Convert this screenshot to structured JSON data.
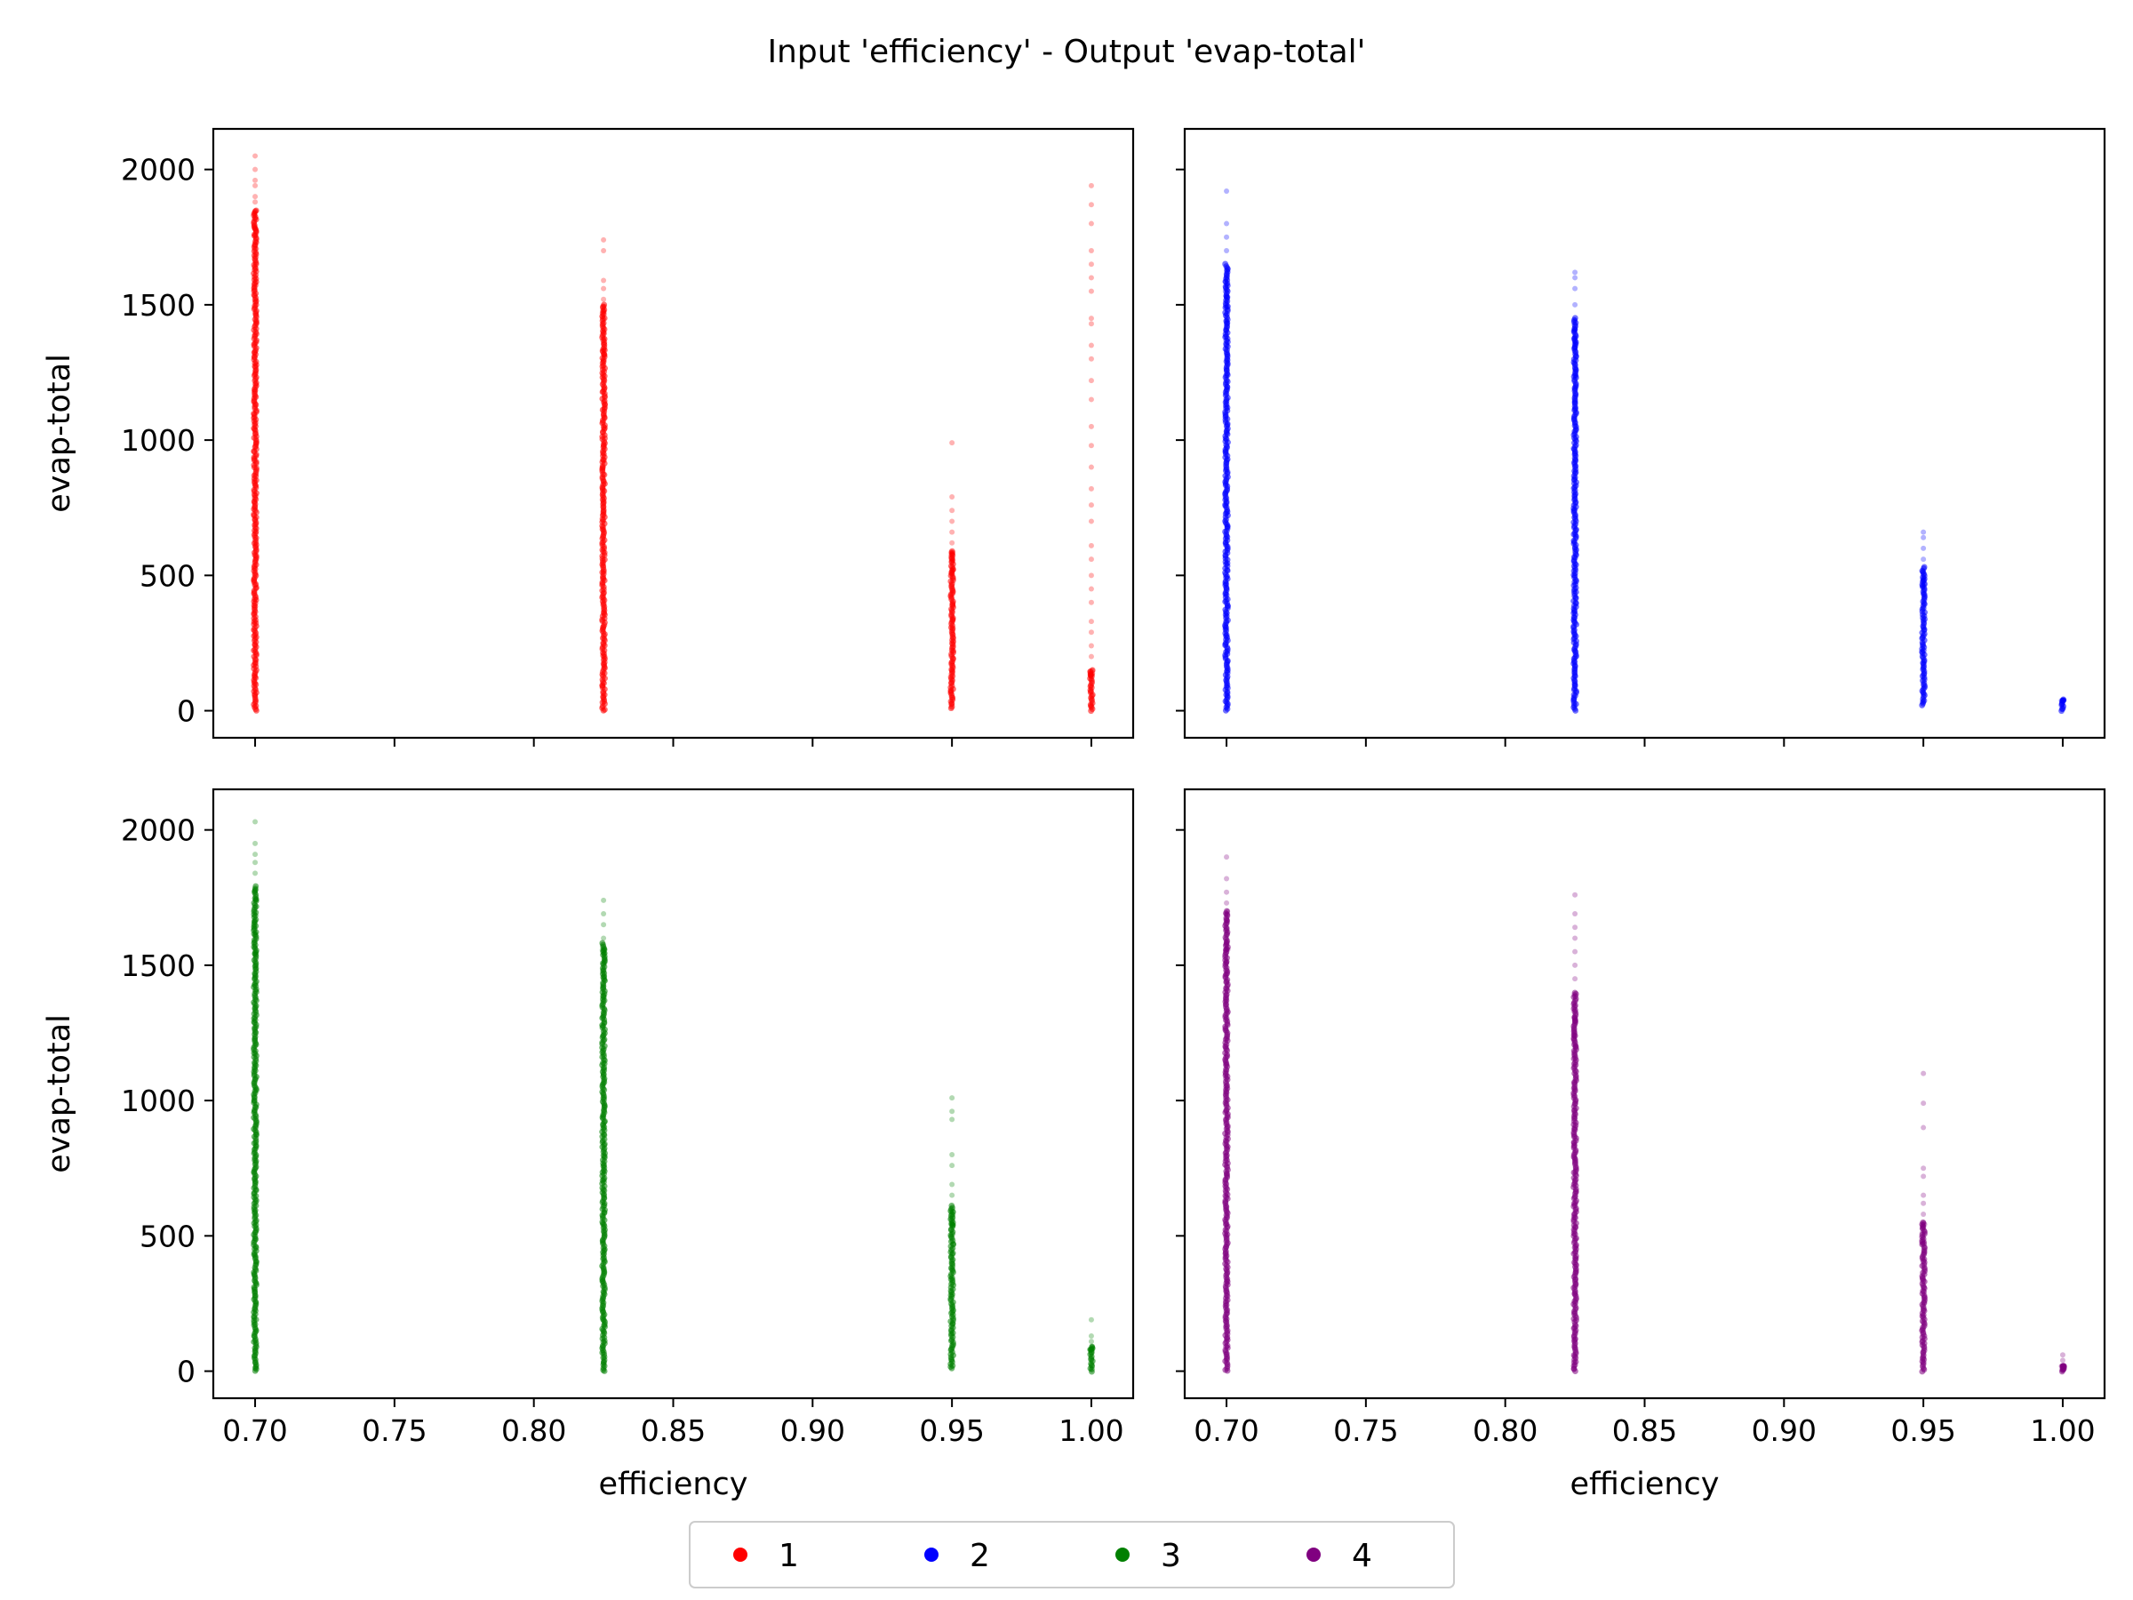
{
  "chart_data": {
    "type": "scatter",
    "title": "Input 'efficiency' - Output 'evap-total'",
    "x_label": "efficiency",
    "y_label": "evap-total",
    "xlim": [
      0.685,
      1.015
    ],
    "ylim": [
      -100,
      2150
    ],
    "x_ticks": [
      "0.70",
      "0.75",
      "0.80",
      "0.85",
      "0.90",
      "0.95",
      "1.00"
    ],
    "x_tick_values": [
      0.7,
      0.75,
      0.8,
      0.85,
      0.9,
      0.95,
      1.0
    ],
    "y_ticks": [
      "0",
      "500",
      "1000",
      "1500",
      "2000"
    ],
    "y_tick_values": [
      0,
      500,
      1000,
      1500,
      2000
    ],
    "grid": false,
    "legend": {
      "placement": "bottom-center",
      "entries": [
        {
          "label": "1",
          "color": "#ff0000"
        },
        {
          "label": "2",
          "color": "#0000ff"
        },
        {
          "label": "3",
          "color": "#008000"
        },
        {
          "label": "4",
          "color": "#800080"
        }
      ]
    },
    "panels": [
      {
        "series_label": "1",
        "color": "#ff0000",
        "columns": [
          {
            "x": 0.7,
            "dense": [
              0,
              1850
            ],
            "outliers": [
              1880,
              1900,
              1940,
              1960,
              2000,
              2050
            ]
          },
          {
            "x": 0.825,
            "dense": [
              0,
              1500
            ],
            "outliers": [
              1520,
              1560,
              1590,
              1700,
              1740
            ]
          },
          {
            "x": 0.95,
            "dense": [
              10,
              590
            ],
            "outliers": [
              620,
              660,
              700,
              740,
              790,
              990
            ]
          },
          {
            "x": 1.0,
            "dense": [
              0,
              150
            ],
            "outliers": [
              200,
              240,
              290,
              330,
              400,
              450,
              500,
              560,
              610,
              700,
              760,
              820,
              900,
              980,
              1050,
              1150,
              1220,
              1300,
              1350,
              1430,
              1450,
              1550,
              1600,
              1650,
              1700,
              1800,
              1870,
              1940
            ]
          }
        ]
      },
      {
        "series_label": "2",
        "color": "#0000ff",
        "columns": [
          {
            "x": 0.7,
            "dense": [
              0,
              1650
            ],
            "outliers": [
              1700,
              1750,
              1800,
              1920
            ]
          },
          {
            "x": 0.825,
            "dense": [
              0,
              1450
            ],
            "outliers": [
              1500,
              1560,
              1600,
              1620
            ]
          },
          {
            "x": 0.95,
            "dense": [
              20,
              530
            ],
            "outliers": [
              560,
              600,
              640,
              660
            ]
          },
          {
            "x": 1.0,
            "dense": [
              0,
              40
            ],
            "outliers": []
          }
        ]
      },
      {
        "series_label": "3",
        "color": "#008000",
        "columns": [
          {
            "x": 0.7,
            "dense": [
              0,
              1790
            ],
            "outliers": [
              1840,
              1880,
              1910,
              1950,
              2030
            ]
          },
          {
            "x": 0.825,
            "dense": [
              0,
              1580
            ],
            "outliers": [
              1600,
              1650,
              1690,
              1740
            ]
          },
          {
            "x": 0.95,
            "dense": [
              10,
              610
            ],
            "outliers": [
              650,
              690,
              760,
              800,
              930,
              960,
              1010
            ]
          },
          {
            "x": 1.0,
            "dense": [
              0,
              90
            ],
            "outliers": [
              110,
              130,
              190
            ]
          }
        ]
      },
      {
        "series_label": "4",
        "color": "#800080",
        "columns": [
          {
            "x": 0.7,
            "dense": [
              0,
              1700
            ],
            "outliers": [
              1730,
              1770,
              1820,
              1900
            ]
          },
          {
            "x": 0.825,
            "dense": [
              0,
              1400
            ],
            "outliers": [
              1450,
              1500,
              1550,
              1600,
              1640,
              1690,
              1760
            ]
          },
          {
            "x": 0.95,
            "dense": [
              0,
              550
            ],
            "outliers": [
              580,
              620,
              650,
              720,
              750,
              900,
              990,
              1100
            ]
          },
          {
            "x": 1.0,
            "dense": [
              0,
              20
            ],
            "outliers": [
              40,
              60
            ]
          }
        ]
      }
    ]
  }
}
